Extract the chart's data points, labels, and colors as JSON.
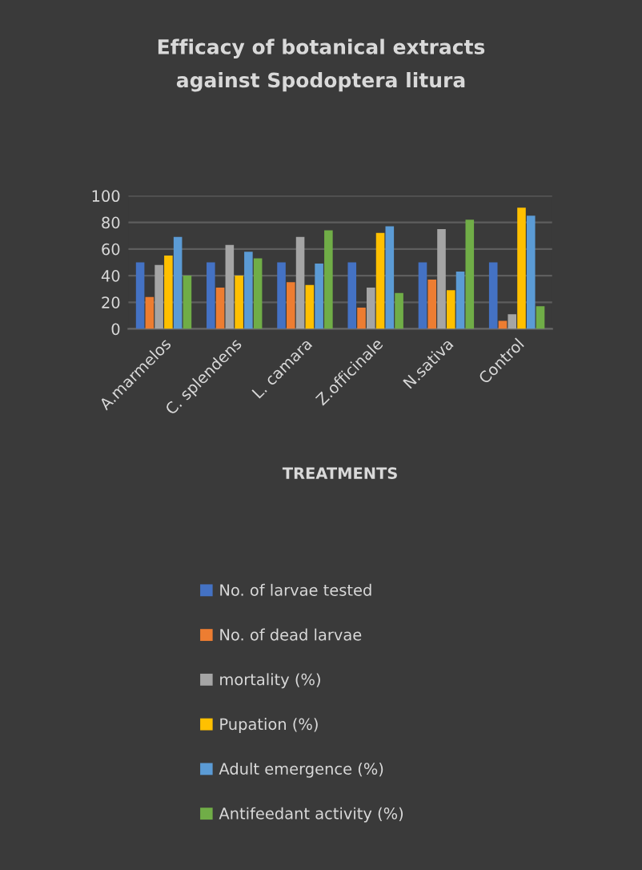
{
  "chart_data": {
    "type": "bar",
    "title": "Efficacy of botanical extracts\nagainst Spodoptera litura",
    "xlabel": "TREATMENTS",
    "categories": [
      "A.marmelos",
      "C. splendens",
      "L. camara",
      "Z.officinale",
      "N.sativa",
      "Control"
    ],
    "series": [
      {
        "name": "No. of larvae tested",
        "color": "#4472c4",
        "values": [
          50,
          50,
          50,
          50,
          50,
          50
        ]
      },
      {
        "name": "No. of dead larvae",
        "color": "#ed7d31",
        "values": [
          24,
          31,
          35,
          16,
          37,
          6
        ]
      },
      {
        "name": "mortality (%)",
        "color": "#a5a5a5",
        "values": [
          48,
          63,
          69,
          31,
          75,
          11
        ]
      },
      {
        "name": "Pupation (%)",
        "color": "#ffc000",
        "values": [
          55,
          40,
          33,
          72,
          29,
          91
        ]
      },
      {
        "name": "Adult emergence (%)",
        "color": "#5b9bd5",
        "values": [
          69,
          58,
          49,
          77,
          43,
          85
        ]
      },
      {
        "name": "Antifeedant activity (%)",
        "color": "#70ad47",
        "values": [
          40,
          53,
          74,
          27,
          82,
          17
        ]
      }
    ],
    "ylim": [
      0,
      100
    ],
    "yticks": [
      0,
      20,
      40,
      60,
      80,
      100
    ],
    "grid": "y",
    "legend": "bottom"
  }
}
